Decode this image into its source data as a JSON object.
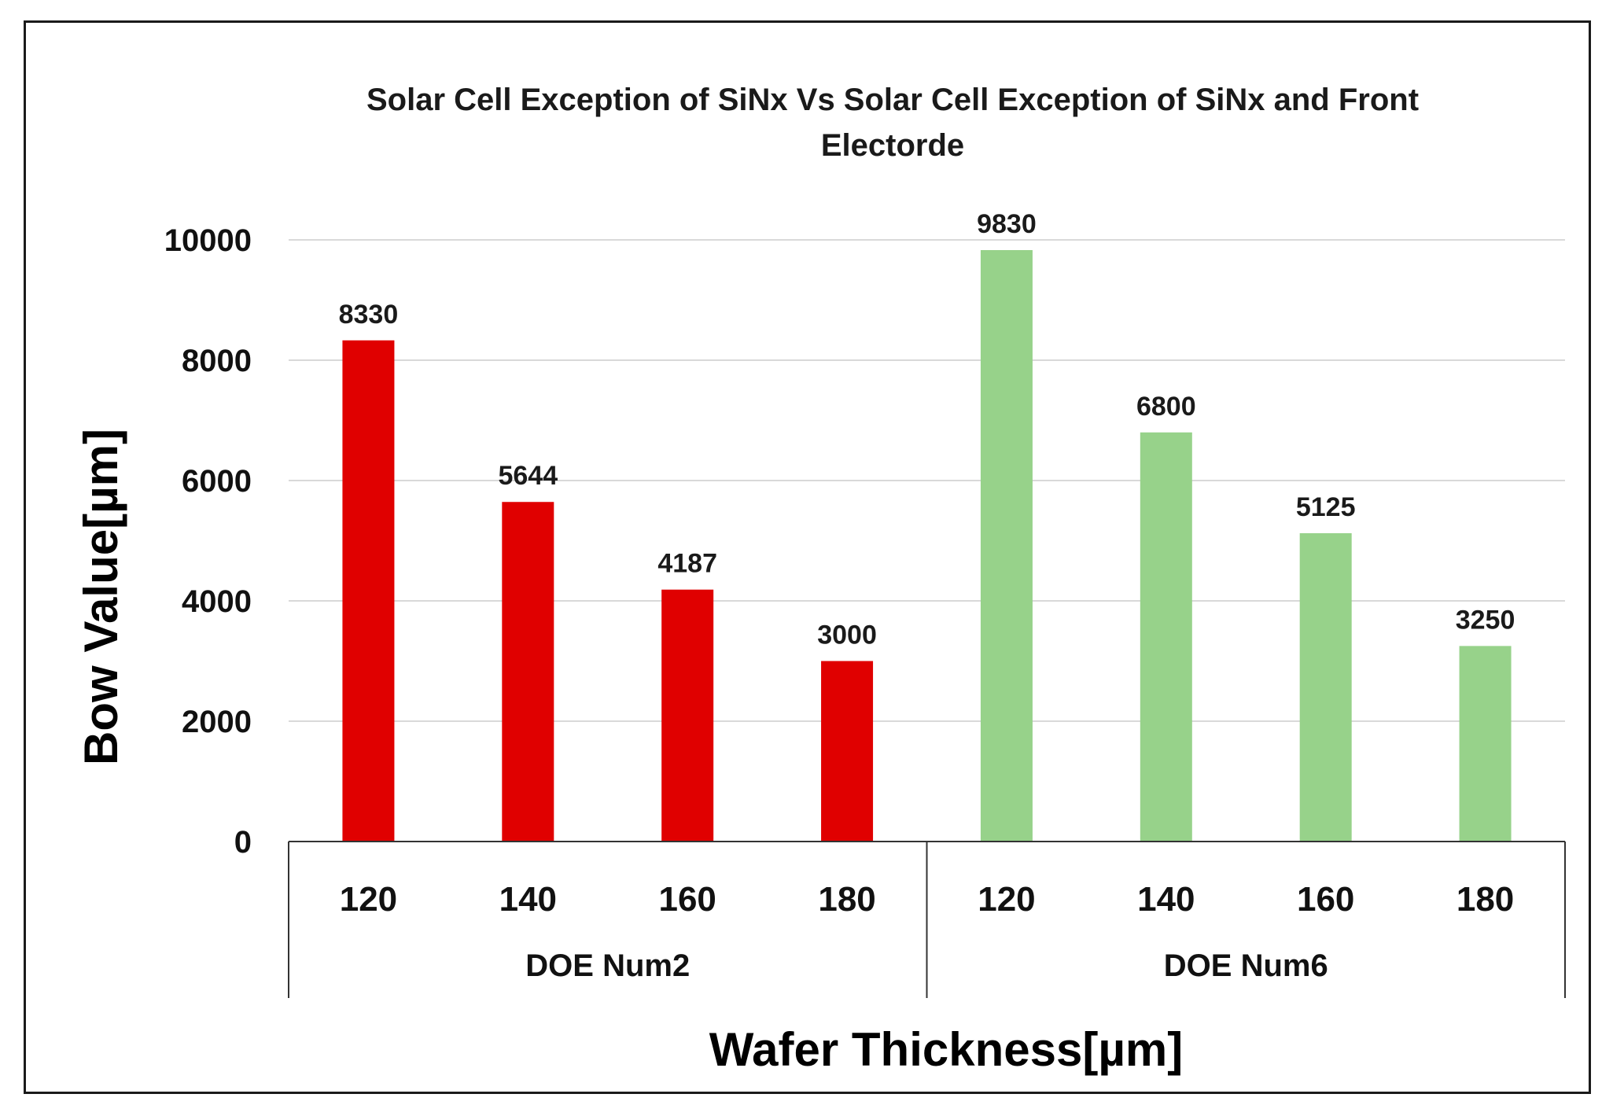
{
  "chart_data": {
    "type": "bar",
    "title_lines": [
      "Solar Cell Exception of SiNx Vs Solar Cell Exception of SiNx and Front",
      "Electorde"
    ],
    "xlabel": "Wafer Thickness[µm]",
    "ylabel": "Bow Value[µm]",
    "ylim": [
      0,
      10000
    ],
    "yticks": [
      0,
      2000,
      4000,
      6000,
      8000,
      10000
    ],
    "grid": true,
    "groups": [
      {
        "name": "DOE Num2",
        "color": "#e00000",
        "categories": [
          "120",
          "140",
          "160",
          "180"
        ],
        "values": [
          8330,
          5644,
          4187,
          3000
        ]
      },
      {
        "name": "DOE Num6",
        "color": "#97d28a",
        "categories": [
          "120",
          "140",
          "160",
          "180"
        ],
        "values": [
          9830,
          6800,
          5125,
          3250
        ]
      }
    ]
  }
}
